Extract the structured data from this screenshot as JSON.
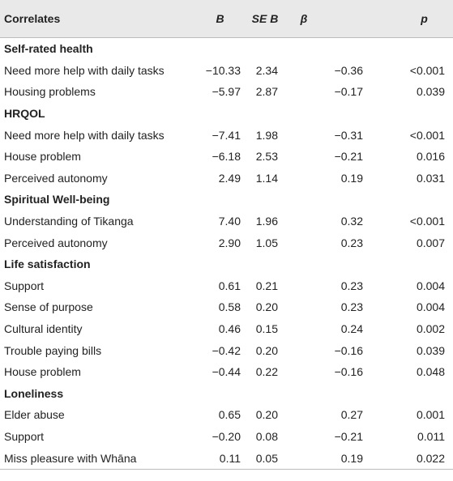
{
  "table": {
    "header": [
      "Correlates",
      "B",
      "SE B",
      "β",
      "p"
    ],
    "sections": [
      {
        "title": "Self-rated health",
        "rows": [
          [
            "Need more help with daily tasks",
            "−10.33",
            "2.34",
            "−0.36",
            "<0.001"
          ],
          [
            "Housing problems",
            "−5.97",
            "2.87",
            "−0.17",
            "0.039"
          ]
        ]
      },
      {
        "title": "HRQOL",
        "rows": [
          [
            "Need more help with daily tasks",
            "−7.41",
            "1.98",
            "−0.31",
            "<0.001"
          ],
          [
            "House problem",
            "−6.18",
            "2.53",
            "−0.21",
            "0.016"
          ],
          [
            "Perceived autonomy",
            "2.49",
            "1.14",
            "0.19",
            "0.031"
          ]
        ]
      },
      {
        "title": "Spiritual Well-being",
        "rows": [
          [
            "Understanding of Tikanga",
            "7.40",
            "1.96",
            "0.32",
            "<0.001"
          ],
          [
            "Perceived autonomy",
            "2.90",
            "1.05",
            "0.23",
            "0.007"
          ]
        ]
      },
      {
        "title": "Life satisfaction",
        "rows": [
          [
            "Support",
            "0.61",
            "0.21",
            "0.23",
            "0.004"
          ],
          [
            "Sense of purpose",
            "0.58",
            "0.20",
            "0.23",
            "0.004"
          ],
          [
            "Cultural identity",
            "0.46",
            "0.15",
            "0.24",
            "0.002"
          ],
          [
            "Trouble paying bills",
            "−0.42",
            "0.20",
            "−0.16",
            "0.039"
          ],
          [
            "House problem",
            "−0.44",
            "0.22",
            "−0.16",
            "0.048"
          ]
        ]
      },
      {
        "title": "Loneliness",
        "rows": [
          [
            "Elder abuse",
            "0.65",
            "0.20",
            "0.27",
            "0.001"
          ],
          [
            "Support",
            "−0.20",
            "0.08",
            "−0.21",
            "0.011"
          ],
          [
            "Miss pleasure with Whāna",
            "0.11",
            "0.05",
            "0.19",
            "0.022"
          ]
        ]
      }
    ]
  }
}
